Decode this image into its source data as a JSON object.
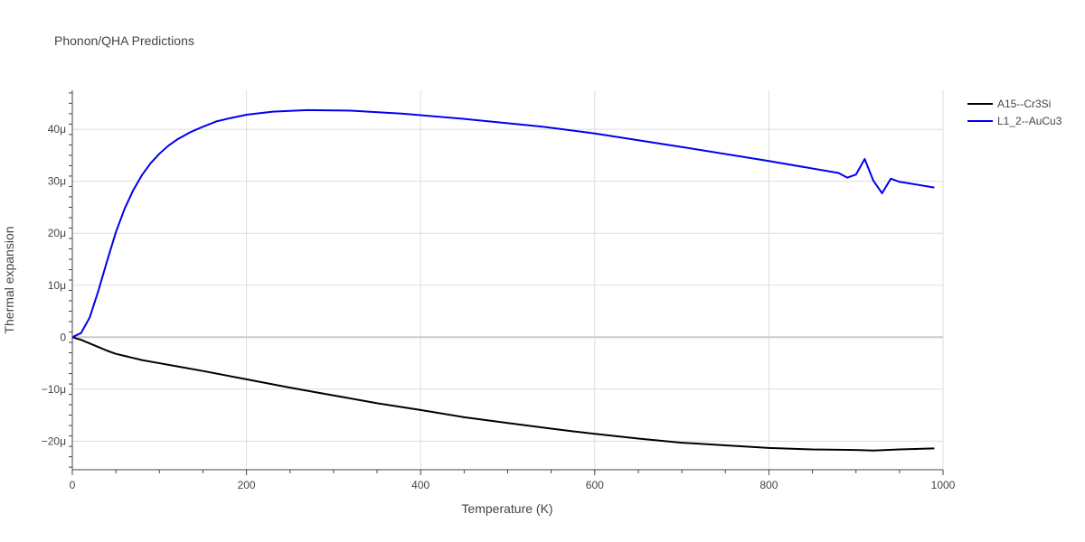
{
  "chart_data": {
    "type": "line",
    "title": "Phonon/QHA Predictions",
    "xlabel": "Temperature (K)",
    "ylabel": "Thermal expansion",
    "xlim": [
      0,
      1000
    ],
    "ylim": [
      -2.55e-05,
      4.75e-05
    ],
    "x_ticks": [
      0,
      200,
      400,
      600,
      800,
      1000
    ],
    "x_tick_labels": [
      "0",
      "200",
      "400",
      "600",
      "800",
      "1000"
    ],
    "y_ticks": [
      -2e-05,
      -1e-05,
      0,
      1e-05,
      2e-05,
      3e-05,
      4e-05
    ],
    "y_tick_labels": [
      "−20μ",
      "−10μ",
      "0",
      "10μ",
      "20μ",
      "30μ",
      "40μ"
    ],
    "grid": true,
    "legend_position": "top-right",
    "series": [
      {
        "name": "A15--Cr3Si",
        "color": "#000000",
        "x": [
          0,
          10,
          20,
          30,
          40,
          50,
          60,
          70,
          80,
          100,
          120,
          150,
          200,
          250,
          300,
          350,
          400,
          450,
          500,
          550,
          600,
          650,
          700,
          750,
          800,
          850,
          900,
          920,
          950,
          990
        ],
        "y": [
          0,
          -5e-07,
          -1.2e-06,
          -1.9e-06,
          -2.6e-06,
          -3.2e-06,
          -3.6e-06,
          -4e-06,
          -4.4e-06,
          -5e-06,
          -5.6e-06,
          -6.5e-06,
          -8.1e-06,
          -9.7e-06,
          -1.12e-05,
          -1.27e-05,
          -1.4e-05,
          -1.54e-05,
          -1.65e-05,
          -1.76e-05,
          -1.86e-05,
          -1.95e-05,
          -2.03e-05,
          -2.08e-05,
          -2.13e-05,
          -2.16e-05,
          -2.17e-05,
          -2.18e-05,
          -2.16e-05,
          -2.14e-05
        ]
      },
      {
        "name": "L1_2--AuCu3",
        "color": "#0000ee",
        "x": [
          0,
          10,
          20,
          30,
          40,
          50,
          60,
          70,
          80,
          90,
          100,
          110,
          120,
          135,
          150,
          165,
          180,
          200,
          230,
          270,
          320,
          380,
          450,
          540,
          600,
          700,
          800,
          880,
          890,
          900,
          910,
          920,
          930,
          940,
          950,
          990
        ],
        "y": [
          0,
          8e-07,
          3.8e-06,
          9e-06,
          1.47e-05,
          2.02e-05,
          2.47e-05,
          2.83e-05,
          3.12e-05,
          3.35e-05,
          3.53e-05,
          3.68e-05,
          3.8e-05,
          3.94e-05,
          4.05e-05,
          4.15e-05,
          4.21e-05,
          4.28e-05,
          4.34e-05,
          4.37e-05,
          4.36e-05,
          4.3e-05,
          4.2e-05,
          4.05e-05,
          3.92e-05,
          3.66e-05,
          3.39e-05,
          3.16e-05,
          3.07e-05,
          3.13e-05,
          3.43e-05,
          3.01e-05,
          2.77e-05,
          3.05e-05,
          2.99e-05,
          2.88e-05
        ]
      }
    ]
  }
}
